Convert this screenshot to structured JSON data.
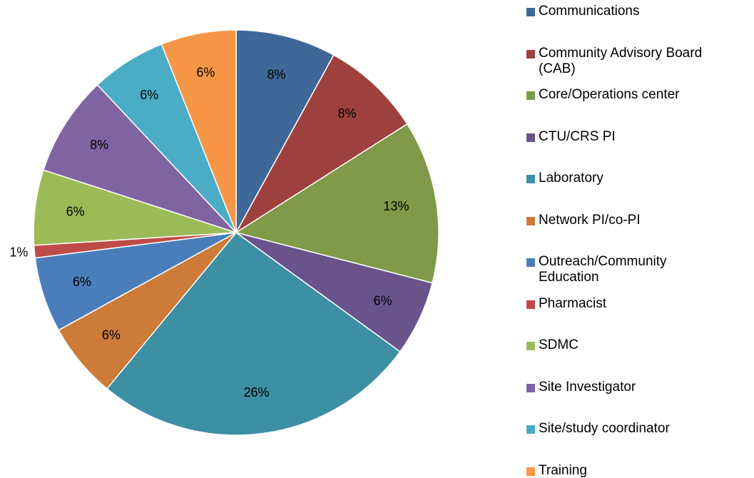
{
  "chart_data": {
    "type": "pie",
    "categories": [
      "Communications",
      "Community Advisory Board (CAB)",
      "Core/Operations center",
      "CTU/CRS PI",
      "Laboratory",
      "Network PI/co-PI",
      "Outreach/Community Education",
      "Pharmacist",
      "SDMC",
      "Site Investigator",
      "Site/study coordinator",
      "Training"
    ],
    "values": [
      8,
      8,
      13,
      6,
      26,
      6,
      6,
      1,
      6,
      8,
      6,
      6
    ],
    "value_labels": [
      "8%",
      "8%",
      "13%",
      "6%",
      "26%",
      "6%",
      "6%",
      "1%",
      "6%",
      "8%",
      "6%",
      "6%"
    ],
    "colors": [
      "#3f6899",
      "#9e413e",
      "#7f9a48",
      "#69538a",
      "#3d8fa4",
      "#cc7b38",
      "#4a7ebb",
      "#be4b48",
      "#9bbb59",
      "#8064a2",
      "#4bacc6",
      "#f79646"
    ],
    "legend": "right"
  }
}
